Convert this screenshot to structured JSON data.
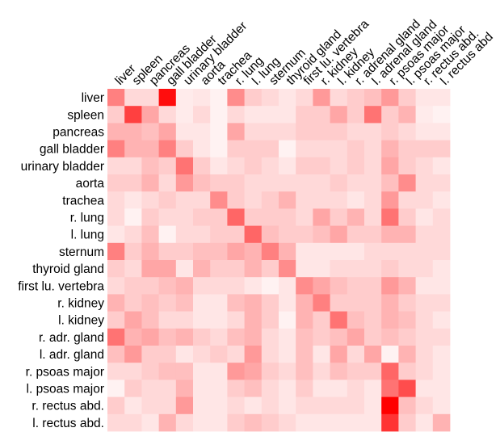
{
  "chart_data": {
    "type": "heatmap",
    "title": "",
    "xlabel": "",
    "ylabel": "",
    "colormap": {
      "low": "#ffffff",
      "high": "#ff0000"
    },
    "value_range": [
      0,
      1
    ],
    "x_labels": [
      "liver",
      "spleen",
      "pancreas",
      "gall bladder",
      "urinary bladder",
      "aorta",
      "trachea",
      "r. lung",
      "l. lung",
      "sternum",
      "thyroid gland",
      "first lu. vertebra",
      "r. kidney",
      "l. kidney",
      "r. adrenal gland",
      "l. adrenal gland",
      "r. psoas major",
      "l. psoas major",
      "r. rectus abd.",
      "l. rectus abd"
    ],
    "y_labels": [
      "liver",
      "spleen",
      "pancreas",
      "gall bladder",
      "urinary bladder",
      "aorta",
      "trachea",
      "r. lung",
      "l. lung",
      "sternum",
      "thyroid gland",
      "first lu. vertebra",
      "r. kidney",
      "l. kidney",
      "r. adr. gland",
      "l. adr. gland",
      "r. psoas major",
      "l. psoas major",
      "r. rectus abd.",
      "l. rectus abd."
    ],
    "values": [
      [
        0.5,
        0.15,
        0.15,
        0.95,
        0.08,
        0.1,
        0.05,
        0.45,
        0.2,
        0.15,
        0.1,
        0.15,
        0.4,
        0.15,
        0.2,
        0.25,
        0.4,
        0.2,
        0.1,
        0.1
      ],
      [
        0.2,
        0.75,
        0.35,
        0.15,
        0.08,
        0.15,
        0.05,
        0.15,
        0.1,
        0.1,
        0.1,
        0.2,
        0.2,
        0.35,
        0.2,
        0.55,
        0.2,
        0.3,
        0.08,
        0.05
      ],
      [
        0.3,
        0.3,
        0.25,
        0.35,
        0.1,
        0.1,
        0.05,
        0.35,
        0.15,
        0.15,
        0.15,
        0.2,
        0.2,
        0.2,
        0.15,
        0.15,
        0.2,
        0.15,
        0.1,
        0.1
      ],
      [
        0.5,
        0.3,
        0.3,
        0.5,
        0.2,
        0.1,
        0.05,
        0.2,
        0.2,
        0.2,
        0.05,
        0.15,
        0.15,
        0.15,
        0.2,
        0.15,
        0.3,
        0.2,
        0.2,
        0.2
      ],
      [
        0.15,
        0.15,
        0.25,
        0.2,
        0.55,
        0.2,
        0.1,
        0.15,
        0.2,
        0.15,
        0.1,
        0.2,
        0.2,
        0.15,
        0.2,
        0.15,
        0.35,
        0.2,
        0.15,
        0.1
      ],
      [
        0.2,
        0.2,
        0.3,
        0.15,
        0.4,
        0.25,
        0.2,
        0.2,
        0.15,
        0.15,
        0.15,
        0.15,
        0.15,
        0.2,
        0.15,
        0.15,
        0.25,
        0.45,
        0.15,
        0.15
      ],
      [
        0.15,
        0.1,
        0.15,
        0.2,
        0.15,
        0.15,
        0.45,
        0.2,
        0.15,
        0.2,
        0.3,
        0.15,
        0.15,
        0.15,
        0.1,
        0.15,
        0.4,
        0.15,
        0.15,
        0.1
      ],
      [
        0.15,
        0.05,
        0.2,
        0.15,
        0.15,
        0.2,
        0.2,
        0.6,
        0.2,
        0.2,
        0.2,
        0.15,
        0.35,
        0.2,
        0.3,
        0.15,
        0.55,
        0.2,
        0.1,
        0.15
      ],
      [
        0.1,
        0.15,
        0.25,
        0.05,
        0.15,
        0.15,
        0.2,
        0.2,
        0.6,
        0.25,
        0.2,
        0.2,
        0.25,
        0.35,
        0.2,
        0.2,
        0.3,
        0.3,
        0.15,
        0.15
      ],
      [
        0.5,
        0.2,
        0.3,
        0.2,
        0.2,
        0.25,
        0.25,
        0.35,
        0.3,
        0.5,
        0.3,
        0.1,
        0.1,
        0.1,
        0.1,
        0.15,
        0.15,
        0.15,
        0.15,
        0.15
      ],
      [
        0.2,
        0.15,
        0.35,
        0.35,
        0.1,
        0.3,
        0.2,
        0.2,
        0.3,
        0.2,
        0.45,
        0.1,
        0.1,
        0.15,
        0.15,
        0.15,
        0.2,
        0.15,
        0.15,
        0.1
      ],
      [
        0.15,
        0.2,
        0.2,
        0.25,
        0.3,
        0.15,
        0.15,
        0.15,
        0.1,
        0.05,
        0.1,
        0.45,
        0.35,
        0.25,
        0.2,
        0.2,
        0.4,
        0.3,
        0.1,
        0.1
      ],
      [
        0.3,
        0.2,
        0.25,
        0.2,
        0.25,
        0.1,
        0.1,
        0.25,
        0.3,
        0.2,
        0.1,
        0.3,
        0.5,
        0.2,
        0.2,
        0.2,
        0.3,
        0.2,
        0.15,
        0.15
      ],
      [
        0.2,
        0.35,
        0.25,
        0.15,
        0.15,
        0.1,
        0.1,
        0.15,
        0.3,
        0.2,
        0.05,
        0.3,
        0.2,
        0.55,
        0.25,
        0.2,
        0.3,
        0.25,
        0.15,
        0.1
      ],
      [
        0.55,
        0.3,
        0.35,
        0.25,
        0.3,
        0.2,
        0.15,
        0.25,
        0.3,
        0.15,
        0.1,
        0.25,
        0.2,
        0.25,
        0.35,
        0.2,
        0.25,
        0.2,
        0.15,
        0.15
      ],
      [
        0.25,
        0.4,
        0.2,
        0.2,
        0.1,
        0.15,
        0.2,
        0.15,
        0.4,
        0.15,
        0.1,
        0.25,
        0.1,
        0.35,
        0.15,
        0.35,
        0.05,
        0.3,
        0.15,
        0.1
      ],
      [
        0.15,
        0.15,
        0.2,
        0.25,
        0.25,
        0.1,
        0.1,
        0.4,
        0.35,
        0.2,
        0.15,
        0.25,
        0.15,
        0.25,
        0.2,
        0.2,
        0.6,
        0.2,
        0.15,
        0.1
      ],
      [
        0.05,
        0.2,
        0.15,
        0.15,
        0.3,
        0.1,
        0.1,
        0.2,
        0.25,
        0.15,
        0.1,
        0.2,
        0.1,
        0.1,
        0.15,
        0.1,
        0.55,
        0.7,
        0.1,
        0.1
      ],
      [
        0.2,
        0.1,
        0.15,
        0.15,
        0.4,
        0.1,
        0.1,
        0.15,
        0.1,
        0.15,
        0.1,
        0.15,
        0.15,
        0.15,
        0.15,
        0.1,
        1.0,
        0.25,
        0.15,
        0.1
      ],
      [
        0.15,
        0.15,
        0.1,
        0.3,
        0.15,
        0.1,
        0.1,
        0.2,
        0.25,
        0.2,
        0.15,
        0.1,
        0.1,
        0.1,
        0.1,
        0.1,
        0.8,
        0.2,
        0.1,
        0.3
      ]
    ]
  }
}
